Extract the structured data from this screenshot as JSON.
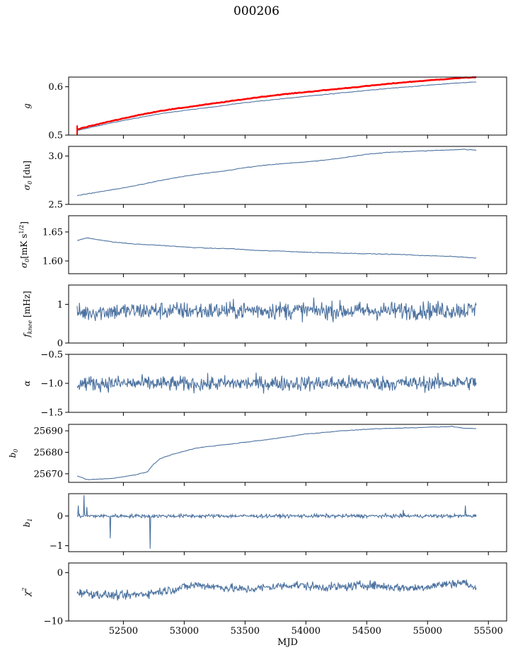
{
  "figure": {
    "title": "000206"
  },
  "style": {
    "line_color": "#4c72a0",
    "highlight_color": "#ff0000",
    "axis_color": "#000000"
  },
  "chart_data": [
    {
      "type": "line",
      "ylabel": "g",
      "ylim": [
        0.5,
        0.62
      ],
      "yticks": [
        0.5,
        0.6
      ],
      "xlim": [
        52050,
        55650
      ],
      "xticks": [
        52000,
        52500,
        53000,
        53500,
        54000,
        54500,
        55000,
        55500
      ],
      "grid": false,
      "series": [
        {
          "role": "blue",
          "x": [
            52120,
            52150,
            52250,
            52400,
            52600,
            52800,
            53000,
            53200,
            53400,
            53600,
            53800,
            54000,
            54200,
            54400,
            54600,
            54800,
            55000,
            55200,
            55400
          ],
          "y": [
            0.509,
            0.511,
            0.517,
            0.525,
            0.535,
            0.544,
            0.551,
            0.557,
            0.564,
            0.57,
            0.575,
            0.58,
            0.585,
            0.59,
            0.595,
            0.599,
            0.603,
            0.607,
            0.61
          ]
        },
        {
          "role": "red",
          "x": [
            52120,
            52150,
            52250,
            52400,
            52600,
            52800,
            53000,
            53200,
            53400,
            53600,
            53800,
            54000,
            54200,
            54400,
            54600,
            54800,
            55000,
            55200,
            55400
          ],
          "y": [
            0.512,
            0.514,
            0.52,
            0.529,
            0.54,
            0.55,
            0.557,
            0.564,
            0.571,
            0.578,
            0.584,
            0.589,
            0.594,
            0.599,
            0.604,
            0.609,
            0.613,
            0.617,
            0.62
          ]
        }
      ]
    },
    {
      "type": "line",
      "ylabel": "σ0 [du]",
      "ylim": [
        2.5,
        3.1
      ],
      "yticks": [
        2.5,
        3.0
      ],
      "xlim": [
        52050,
        55650
      ],
      "xticks": [
        52000,
        52500,
        53000,
        53500,
        54000,
        54500,
        55000,
        55500
      ],
      "grid": false,
      "series": [
        {
          "role": "blue",
          "x": [
            52120,
            52300,
            52500,
            52700,
            52900,
            53100,
            53300,
            53500,
            53700,
            53900,
            54100,
            54300,
            54500,
            54700,
            54900,
            55100,
            55300,
            55400
          ],
          "y": [
            2.59,
            2.63,
            2.67,
            2.72,
            2.77,
            2.81,
            2.84,
            2.88,
            2.91,
            2.93,
            2.95,
            2.98,
            3.02,
            3.04,
            3.05,
            3.06,
            3.07,
            3.06
          ]
        }
      ]
    },
    {
      "type": "line",
      "ylabel": "σ0[mK s1/2]",
      "ylim": [
        1.578,
        1.678
      ],
      "yticks": [
        1.6,
        1.65
      ],
      "xlim": [
        52050,
        55650
      ],
      "xticks": [
        52000,
        52500,
        53000,
        53500,
        54000,
        54500,
        55000,
        55500
      ],
      "grid": false,
      "series": [
        {
          "role": "blue",
          "x": [
            52120,
            52200,
            52400,
            52600,
            52800,
            53000,
            53200,
            53400,
            53600,
            53800,
            54000,
            54200,
            54400,
            54600,
            54800,
            55000,
            55200,
            55400
          ],
          "y": [
            1.635,
            1.64,
            1.633,
            1.629,
            1.627,
            1.624,
            1.622,
            1.621,
            1.618,
            1.617,
            1.615,
            1.614,
            1.613,
            1.612,
            1.611,
            1.609,
            1.608,
            1.605
          ]
        }
      ]
    },
    {
      "type": "line",
      "ylabel": "fknee [mHz]",
      "ylim": [
        0,
        1.5
      ],
      "yticks": [
        0,
        1
      ],
      "xlim": [
        52050,
        55650
      ],
      "xticks": [
        52000,
        52500,
        53000,
        53500,
        54000,
        54500,
        55000,
        55500
      ],
      "grid": false,
      "series": [
        {
          "role": "blue",
          "noise": 0.23,
          "x": [
            52120,
            52400,
            52800,
            53200,
            53600,
            54000,
            54400,
            54800,
            55200,
            55400
          ],
          "y": [
            0.78,
            0.82,
            0.84,
            0.83,
            0.85,
            0.84,
            0.83,
            0.84,
            0.85,
            0.86
          ]
        }
      ]
    },
    {
      "type": "line",
      "ylabel": "α",
      "ylim": [
        -1.5,
        -0.5
      ],
      "yticks": [
        -1.5,
        -1.0,
        -0.5
      ],
      "xlim": [
        52050,
        55650
      ],
      "xticks": [
        52000,
        52500,
        53000,
        53500,
        54000,
        54500,
        55000,
        55500
      ],
      "grid": false,
      "series": [
        {
          "role": "blue",
          "noise": 0.13,
          "x": [
            52120,
            52500,
            53000,
            53500,
            54000,
            54500,
            55000,
            55400
          ],
          "y": [
            -1.0,
            -1.0,
            -1.01,
            -1.0,
            -1.0,
            -1.0,
            -1.0,
            -0.98
          ]
        }
      ]
    },
    {
      "type": "line",
      "ylabel": "b0",
      "ylim": [
        25666,
        25693
      ],
      "yticks": [
        25670,
        25680,
        25690
      ],
      "xlim": [
        52050,
        55650
      ],
      "xticks": [
        52000,
        52500,
        53000,
        53500,
        54000,
        54500,
        55000,
        55500
      ],
      "grid": false,
      "series": [
        {
          "role": "blue",
          "x": [
            52120,
            52170,
            52200,
            52400,
            52600,
            52700,
            52740,
            52800,
            52900,
            53100,
            53400,
            53700,
            54000,
            54300,
            54600,
            54900,
            55200,
            55300,
            55400
          ],
          "y": [
            25669,
            25668,
            25667.2,
            25667.8,
            25669.5,
            25671,
            25674,
            25677,
            25679,
            25682,
            25684,
            25686,
            25688.5,
            25690,
            25691,
            25691.5,
            25692,
            25691.2,
            25691
          ]
        }
      ]
    },
    {
      "type": "line",
      "ylabel": "b1",
      "ylim": [
        -1.2,
        0.75
      ],
      "yticks": [
        -1,
        0
      ],
      "xlim": [
        52050,
        55650
      ],
      "xticks": [
        52000,
        52500,
        53000,
        53500,
        54000,
        54500,
        55000,
        55500
      ],
      "grid": false,
      "series": [
        {
          "role": "blue",
          "noise": 0.06,
          "x": [
            52120,
            53000,
            54000,
            55000,
            55400
          ],
          "y": [
            0.0,
            0.0,
            0.0,
            0.0,
            0.0
          ],
          "spikes": [
            [
              52130,
              0.35
            ],
            [
              52175,
              0.7
            ],
            [
              52200,
              0.3
            ],
            [
              52390,
              -0.75
            ],
            [
              52720,
              -1.1
            ],
            [
              54800,
              0.2
            ],
            [
              55310,
              0.35
            ]
          ]
        }
      ]
    },
    {
      "type": "line",
      "ylabel": "χ2",
      "ylim": [
        -10,
        2
      ],
      "yticks": [
        -10,
        0
      ],
      "xlim": [
        52050,
        55650
      ],
      "xticks": [
        52000,
        52500,
        53000,
        53500,
        54000,
        54500,
        55000,
        55500
      ],
      "xlabel": "MJD",
      "grid": false,
      "series": [
        {
          "role": "blue",
          "noise": 0.9,
          "x": [
            52120,
            52300,
            52500,
            52700,
            52900,
            53100,
            53300,
            53500,
            53700,
            53900,
            54100,
            54300,
            54500,
            54700,
            54900,
            55100,
            55300,
            55400
          ],
          "y": [
            -4.0,
            -4.5,
            -4.8,
            -4.3,
            -3.5,
            -2.5,
            -3.0,
            -3.5,
            -3.0,
            -2.5,
            -3.0,
            -3.0,
            -2.5,
            -3.0,
            -3.2,
            -2.5,
            -2.0,
            -3.5
          ]
        }
      ]
    }
  ]
}
